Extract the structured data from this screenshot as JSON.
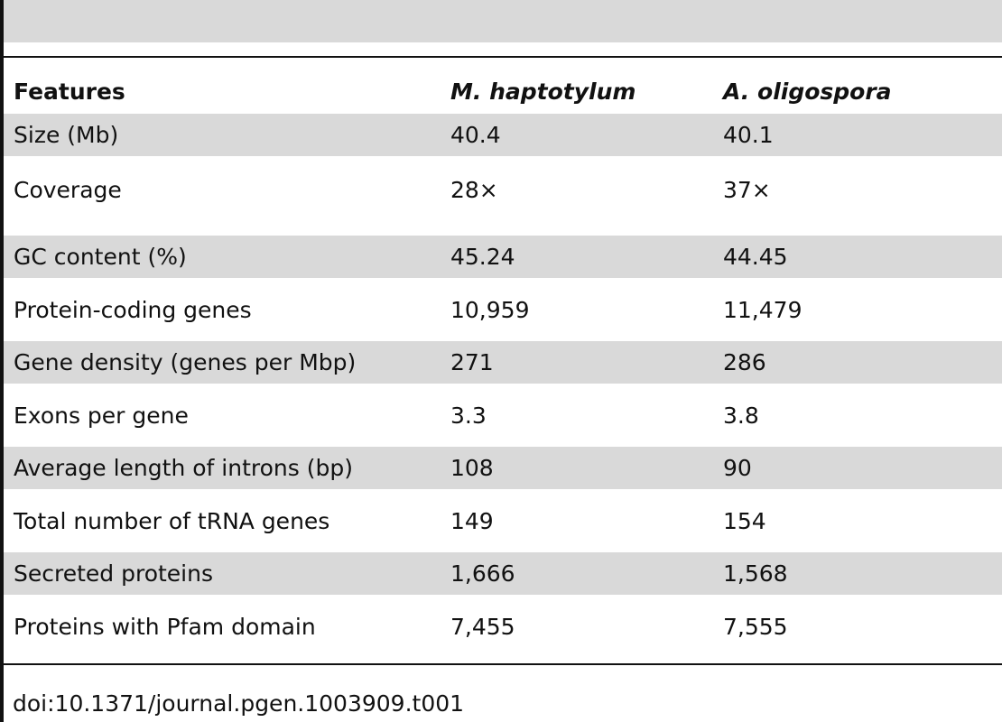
{
  "table": {
    "headers": [
      "Features",
      "M. haptotylum",
      "A. oligospora"
    ],
    "rows": [
      [
        "Size (Mb)",
        "40.4",
        "40.1"
      ],
      [
        "Coverage",
        "28×",
        "37×"
      ],
      [
        "GC content (%)",
        "45.24",
        "44.45"
      ],
      [
        "Protein-coding genes",
        "10,959",
        "11,479"
      ],
      [
        "Gene density (genes per Mbp)",
        "271",
        "286"
      ],
      [
        "Exons per gene",
        "3.3",
        "3.8"
      ],
      [
        "Average length of introns (bp)",
        "108",
        "90"
      ],
      [
        "Total number of tRNA genes",
        "149",
        "154"
      ],
      [
        "Secreted proteins",
        "1,666",
        "1,568"
      ],
      [
        "Proteins with Pfam domain",
        "7,455",
        "7,555"
      ]
    ]
  },
  "footer": {
    "doi": "doi:10.1371/journal.pgen.1003909.t001"
  }
}
